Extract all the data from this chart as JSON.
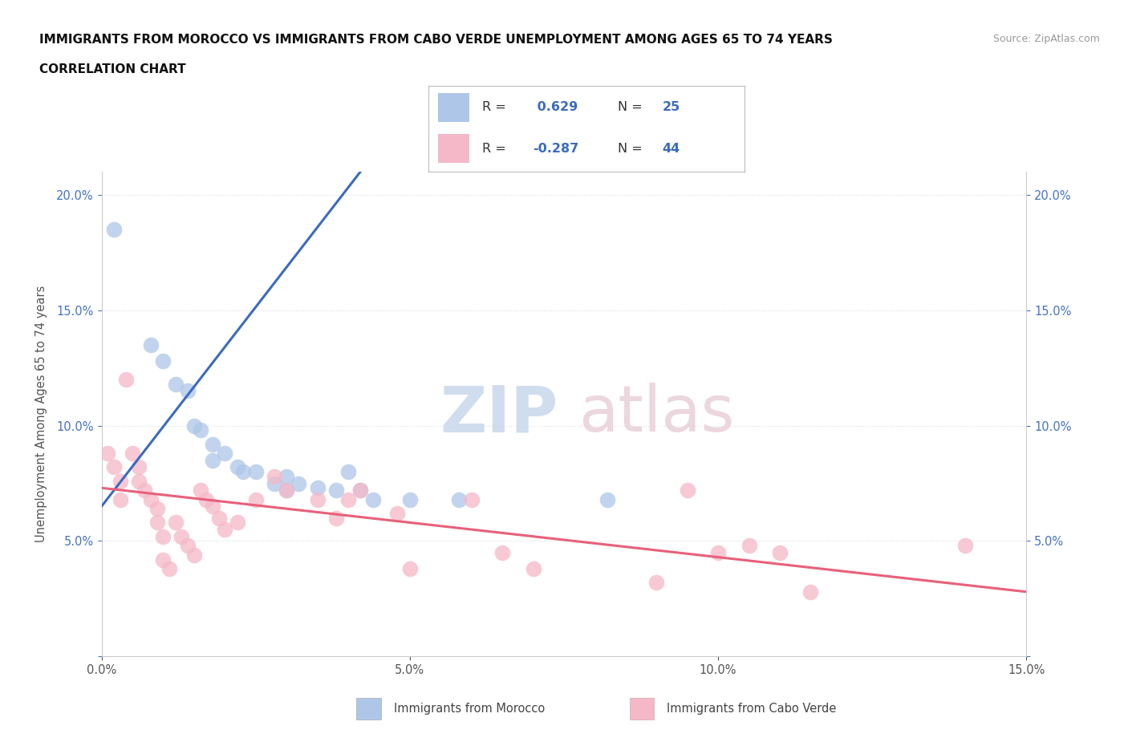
{
  "title_line1": "IMMIGRANTS FROM MOROCCO VS IMMIGRANTS FROM CABO VERDE UNEMPLOYMENT AMONG AGES 65 TO 74 YEARS",
  "title_line2": "CORRELATION CHART",
  "source_text": "Source: ZipAtlas.com",
  "ylabel": "Unemployment Among Ages 65 to 74 years",
  "xlim": [
    0.0,
    0.15
  ],
  "ylim": [
    0.0,
    0.21
  ],
  "xtick_vals": [
    0.0,
    0.05,
    0.1,
    0.15
  ],
  "ytick_vals": [
    0.0,
    0.05,
    0.1,
    0.15,
    0.2
  ],
  "morocco_color": "#aec6e8",
  "cabo_verde_color": "#f5b8c8",
  "morocco_line_color": "#3a6bbf",
  "cabo_verde_line_color": "#e8607a",
  "morocco_scatter": [
    [
      0.002,
      0.185
    ],
    [
      0.008,
      0.135
    ],
    [
      0.01,
      0.128
    ],
    [
      0.012,
      0.118
    ],
    [
      0.014,
      0.115
    ],
    [
      0.015,
      0.1
    ],
    [
      0.016,
      0.098
    ],
    [
      0.018,
      0.092
    ],
    [
      0.018,
      0.085
    ],
    [
      0.02,
      0.088
    ],
    [
      0.022,
      0.082
    ],
    [
      0.023,
      0.08
    ],
    [
      0.025,
      0.08
    ],
    [
      0.028,
      0.075
    ],
    [
      0.03,
      0.078
    ],
    [
      0.03,
      0.072
    ],
    [
      0.032,
      0.075
    ],
    [
      0.035,
      0.073
    ],
    [
      0.038,
      0.072
    ],
    [
      0.04,
      0.08
    ],
    [
      0.042,
      0.072
    ],
    [
      0.044,
      0.068
    ],
    [
      0.05,
      0.068
    ],
    [
      0.058,
      0.068
    ],
    [
      0.082,
      0.068
    ]
  ],
  "cabo_verde_scatter": [
    [
      0.001,
      0.088
    ],
    [
      0.002,
      0.082
    ],
    [
      0.003,
      0.076
    ],
    [
      0.003,
      0.068
    ],
    [
      0.004,
      0.12
    ],
    [
      0.005,
      0.088
    ],
    [
      0.006,
      0.082
    ],
    [
      0.006,
      0.076
    ],
    [
      0.007,
      0.072
    ],
    [
      0.008,
      0.068
    ],
    [
      0.009,
      0.064
    ],
    [
      0.009,
      0.058
    ],
    [
      0.01,
      0.052
    ],
    [
      0.01,
      0.042
    ],
    [
      0.011,
      0.038
    ],
    [
      0.012,
      0.058
    ],
    [
      0.013,
      0.052
    ],
    [
      0.014,
      0.048
    ],
    [
      0.015,
      0.044
    ],
    [
      0.016,
      0.072
    ],
    [
      0.017,
      0.068
    ],
    [
      0.018,
      0.065
    ],
    [
      0.019,
      0.06
    ],
    [
      0.02,
      0.055
    ],
    [
      0.022,
      0.058
    ],
    [
      0.025,
      0.068
    ],
    [
      0.028,
      0.078
    ],
    [
      0.03,
      0.072
    ],
    [
      0.035,
      0.068
    ],
    [
      0.038,
      0.06
    ],
    [
      0.04,
      0.068
    ],
    [
      0.042,
      0.072
    ],
    [
      0.048,
      0.062
    ],
    [
      0.05,
      0.038
    ],
    [
      0.06,
      0.068
    ],
    [
      0.065,
      0.045
    ],
    [
      0.07,
      0.038
    ],
    [
      0.09,
      0.032
    ],
    [
      0.095,
      0.072
    ],
    [
      0.1,
      0.045
    ],
    [
      0.105,
      0.048
    ],
    [
      0.11,
      0.045
    ],
    [
      0.14,
      0.048
    ],
    [
      0.115,
      0.028
    ]
  ],
  "morocco_R": 0.629,
  "morocco_N": 25,
  "cabo_verde_R": -0.287,
  "cabo_verde_N": 44,
  "background_color": "#ffffff"
}
